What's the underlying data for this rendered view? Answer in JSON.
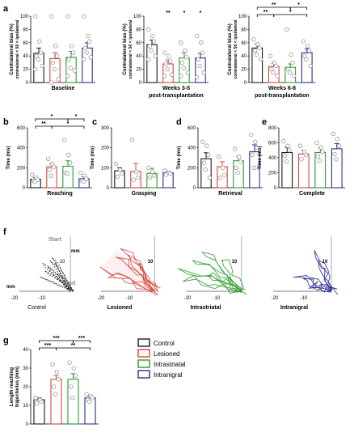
{
  "colors": {
    "control": "#1a1a1a",
    "lesioned": "#d6473c",
    "intrastriatal": "#2e9a2e",
    "intranigral": "#2b2f8f",
    "point": "#888888",
    "end_label": "#888888"
  },
  "figure": {
    "panel_letters": {
      "a": "a",
      "b": "b",
      "c": "c",
      "d": "d",
      "e": "e",
      "f": "f",
      "g": "g"
    }
  },
  "chart_data": [
    {
      "id": "a1",
      "type": "bar",
      "panel": "a",
      "ylabel": "Contralateral bias (%)",
      "ylabel_sub": "contralateral < 50 < ipsilateral",
      "xlabel": "Baseline",
      "ylim": [
        0,
        100
      ],
      "yticks": [
        "0",
        "20",
        "40",
        "60",
        "80",
        "100"
      ],
      "categories": [
        "Control",
        "Lesioned",
        "Intrastriatal",
        "Intranigral"
      ],
      "values": [
        44,
        36,
        38,
        52
      ],
      "errors": [
        8,
        9,
        9,
        8
      ],
      "stars": [
        "",
        "",
        "",
        ""
      ],
      "points": [
        [
          100,
          62,
          45,
          40,
          35,
          25,
          20
        ],
        [
          100,
          55,
          40,
          30,
          20,
          5,
          0
        ],
        [
          100,
          55,
          45,
          35,
          22,
          18,
          10
        ],
        [
          100,
          70,
          62,
          52,
          45,
          38,
          35
        ]
      ]
    },
    {
      "id": "a2",
      "type": "bar",
      "panel": "a",
      "ylabel": "Contralateral bias (%)",
      "ylabel_sub": "contralateral < 50 < ipsilateral",
      "xlabel": "Weeks 3-5",
      "xlabel2": "post-transplantation",
      "ylim": [
        0,
        100
      ],
      "yticks": [
        "0",
        "20",
        "40",
        "60",
        "80",
        "100"
      ],
      "categories": [
        "Control",
        "Lesioned",
        "Intrastriatal",
        "Intranigral"
      ],
      "values": [
        57,
        28,
        37,
        37
      ],
      "errors": [
        7,
        6,
        8,
        7
      ],
      "stars": [
        "",
        "**",
        "*",
        "*"
      ],
      "points": [
        [
          80,
          70,
          62,
          55,
          48,
          40,
          35
        ],
        [
          45,
          40,
          32,
          28,
          20,
          12,
          10
        ],
        [
          60,
          48,
          38,
          30,
          22,
          15,
          10
        ],
        [
          70,
          60,
          45,
          35,
          25,
          15,
          8
        ]
      ]
    },
    {
      "id": "a3",
      "type": "bar",
      "panel": "a",
      "ylabel": "Contralateral bias (%)",
      "ylabel_sub": "contralateral < 50 < ipsilateral",
      "xlabel": "Weeks 6-8",
      "xlabel2": "post-transplantation",
      "ylim": [
        0,
        100
      ],
      "yticks": [
        "0",
        "20",
        "40",
        "60",
        "80",
        "100"
      ],
      "categories": [
        "Control",
        "Lesioned",
        "Intrastriatal",
        "Intranigral"
      ],
      "values": [
        52,
        24,
        23,
        45
      ],
      "errors": [
        6,
        5,
        5,
        6
      ],
      "stars": [
        "",
        "",
        "",
        ""
      ],
      "points": [
        [
          65,
          58,
          52,
          48,
          42,
          35
        ],
        [
          40,
          30,
          25,
          20,
          15,
          10
        ],
        [
          80,
          42,
          30,
          20,
          15,
          10
        ],
        [
          62,
          55,
          48,
          40,
          35,
          25
        ]
      ],
      "brackets": [
        {
          "from": 0,
          "to": 2,
          "level": 1,
          "label": "**"
        },
        {
          "from": 2,
          "to": 3,
          "level": 1,
          "label": "*"
        },
        {
          "from": 0,
          "to": 1,
          "level": 0,
          "label": "**"
        },
        {
          "from": 1,
          "to": 3,
          "level": 0,
          "label": "*"
        }
      ]
    },
    {
      "id": "b",
      "type": "bar",
      "panel": "b",
      "ylabel": "Time (ms)",
      "xlabel": "Reaching",
      "ylim": [
        0,
        600
      ],
      "yticks": [
        "0",
        "200",
        "400",
        "600"
      ],
      "categories": [
        "Control",
        "Lesioned",
        "Intrastriatal",
        "Intranigral"
      ],
      "values": [
        85,
        210,
        215,
        90
      ],
      "errors": [
        15,
        30,
        55,
        20
      ],
      "stars": [
        "",
        "",
        "",
        ""
      ],
      "points": [
        [
          130,
          100,
          80,
          70,
          60
        ],
        [
          290,
          240,
          210,
          180,
          120
        ],
        [
          480,
          330,
          250,
          150,
          140
        ],
        [
          150,
          120,
          90,
          70,
          60
        ]
      ],
      "brackets": [
        {
          "from": 0,
          "to": 2,
          "level": 1,
          "label": "*"
        },
        {
          "from": 2,
          "to": 3,
          "level": 1,
          "label": "*"
        },
        {
          "from": 0,
          "to": 1,
          "level": 0,
          "label": "**"
        },
        {
          "from": 1,
          "to": 3,
          "level": 0,
          "label": "*"
        }
      ]
    },
    {
      "id": "c",
      "type": "bar",
      "panel": "c",
      "ylabel": "Time (ms)",
      "xlabel": "Grasping",
      "ylim": [
        0,
        300
      ],
      "yticks": [
        "0",
        "100",
        "200",
        "300"
      ],
      "categories": [
        "Control",
        "Lesioned",
        "Intrastriatal",
        "Intranigral"
      ],
      "values": [
        85,
        82,
        72,
        75
      ],
      "errors": [
        15,
        40,
        25,
        8
      ],
      "stars": [
        "",
        "",
        "",
        ""
      ],
      "points": [
        [
          120,
          90,
          70,
          55
        ],
        [
          240,
          80,
          50,
          40
        ],
        [
          100,
          80,
          60,
          50
        ],
        [
          85,
          75,
          70,
          65
        ]
      ]
    },
    {
      "id": "d",
      "type": "bar",
      "panel": "d",
      "ylabel": "Time (ms)",
      "xlabel": "Retrieval",
      "ylim": [
        0,
        600
      ],
      "yticks": [
        "0",
        "200",
        "400",
        "600"
      ],
      "categories": [
        "Control",
        "Lesioned",
        "Intrastriatal",
        "Intranigral"
      ],
      "values": [
        290,
        210,
        270,
        360
      ],
      "errors": [
        60,
        50,
        45,
        70
      ],
      "stars": [
        "",
        "",
        "",
        ""
      ],
      "points": [
        [
          460,
          420,
          330,
          250,
          180,
          100
        ],
        [
          310,
          200,
          130,
          100
        ],
        [
          390,
          310,
          260,
          200,
          150
        ],
        [
          530,
          460,
          400,
          330,
          200
        ]
      ]
    },
    {
      "id": "e",
      "type": "bar",
      "panel": "e",
      "ylabel": "Time (ms)",
      "xlabel": "Complete",
      "ylim": [
        0,
        800
      ],
      "yticks": [
        "0",
        "200",
        "400",
        "600",
        "800"
      ],
      "categories": [
        "Control",
        "Lesioned",
        "Intrastriatal",
        "Intranigral"
      ],
      "values": [
        470,
        450,
        470,
        520
      ],
      "errors": [
        70,
        50,
        60,
        70
      ],
      "stars": [
        "",
        "",
        "",
        ""
      ],
      "points": [
        [
          620,
          560,
          500,
          430,
          350
        ],
        [
          560,
          480,
          440,
          380
        ],
        [
          600,
          540,
          480,
          420,
          360
        ],
        [
          720,
          650,
          560,
          450,
          380
        ]
      ]
    },
    {
      "id": "f",
      "type": "line",
      "panel": "f",
      "xticks": [
        "-20",
        "-10",
        "10",
        "-20",
        "-10",
        "-20",
        "-10",
        "-20",
        "-10"
      ],
      "unit": "mm",
      "start_label": "Start",
      "end_label": "End",
      "groups": [
        {
          "name": "Control",
          "x_ends": [
            -6,
            -8,
            -9,
            -10,
            -11,
            -7,
            -5,
            -12
          ],
          "y_ends": [
            8,
            9,
            7,
            6,
            8,
            10,
            5,
            4
          ]
        },
        {
          "name": "Lesioned",
          "x_ends": [
            -14,
            -20,
            -12,
            -9,
            -17,
            -6
          ],
          "y_ends": [
            11,
            7,
            12,
            10,
            5,
            9
          ]
        },
        {
          "name": "Intrastriatal",
          "x_ends": [
            -18,
            -22,
            -14,
            -8,
            -12,
            -20
          ],
          "y_ends": [
            10,
            7,
            12,
            10,
            5,
            4
          ]
        },
        {
          "name": "Intranigral",
          "x_ends": [
            -10,
            -6,
            -4,
            -12,
            -7
          ],
          "y_ends": [
            3,
            11,
            9,
            5,
            2
          ]
        }
      ]
    },
    {
      "id": "g",
      "type": "bar",
      "panel": "g",
      "ylabel": "Length reaching",
      "ylabel2": "trajectories (mm)",
      "ylim": [
        0,
        40
      ],
      "yticks": [
        "0",
        "10",
        "20",
        "30",
        "40"
      ],
      "categories": [
        "Control",
        "Lesioned",
        "Intrastriatal",
        "Intranigral"
      ],
      "values": [
        13,
        24,
        24,
        14
      ],
      "errors": [
        1,
        2,
        3,
        1
      ],
      "stars": [
        "",
        "",
        "",
        ""
      ],
      "points": [
        [
          14,
          13,
          12,
          11
        ],
        [
          32,
          28,
          24,
          20,
          16
        ],
        [
          33,
          30,
          26,
          20,
          14
        ],
        [
          16,
          15,
          14,
          13,
          12
        ]
      ],
      "brackets": [
        {
          "from": 0,
          "to": 2,
          "level": 1,
          "label": "***"
        },
        {
          "from": 2,
          "to": 3,
          "level": 1,
          "label": "***"
        },
        {
          "from": 0,
          "to": 1,
          "level": 0,
          "label": "***"
        },
        {
          "from": 1,
          "to": 3,
          "level": 0,
          "label": "**"
        }
      ]
    }
  ],
  "legend": [
    {
      "label": "Control",
      "color": "#1a1a1a"
    },
    {
      "label": "Lesioned",
      "color": "#d6473c"
    },
    {
      "label": "Intrastriatal",
      "color": "#2e9a2e"
    },
    {
      "label": "Intranigral",
      "color": "#2b2f8f"
    }
  ]
}
